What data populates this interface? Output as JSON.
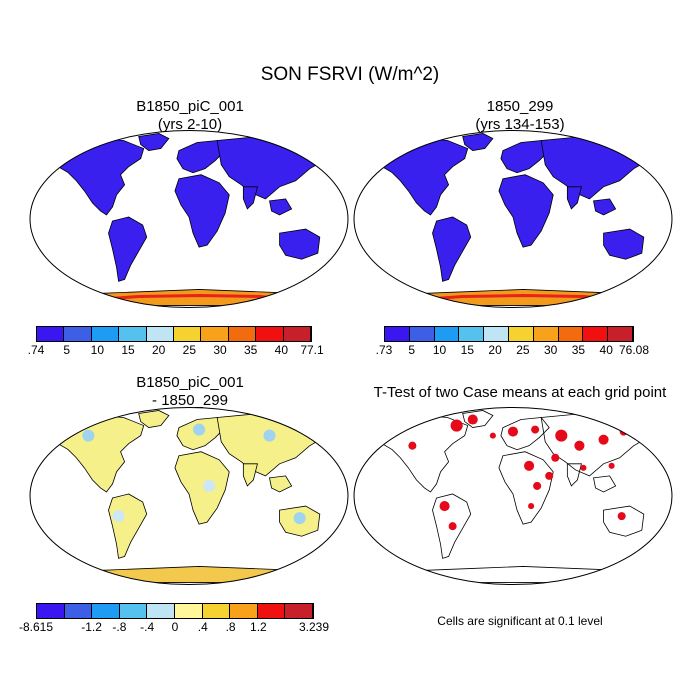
{
  "main_title": "SON FSRVI (W/m^2)",
  "panels": [
    {
      "title_line1": "B1850_piC_001",
      "title_line2": "(yrs 2-10)",
      "colorbar": {
        "labels": [
          ".74",
          "5",
          "10",
          "15",
          "20",
          "25",
          "30",
          "35",
          "40",
          "77.1"
        ],
        "colors": [
          "#3a17f0",
          "#3c5fe6",
          "#1e9bf2",
          "#55c1ee",
          "#bfe4f3",
          "#f5d230",
          "#f7a21a",
          "#f26b0f",
          "#f01010",
          "#c8202a"
        ]
      },
      "fill": "#3a20ee"
    },
    {
      "title_line1": "1850_299",
      "title_line2": "(yrs 134-153)",
      "colorbar": {
        "labels": [
          ".73",
          "5",
          "10",
          "15",
          "20",
          "25",
          "30",
          "35",
          "40",
          "76.08"
        ],
        "colors": [
          "#3a17f0",
          "#3c5fe6",
          "#1e9bf2",
          "#55c1ee",
          "#bfe4f3",
          "#f5d230",
          "#f7a21a",
          "#f26b0f",
          "#f01010",
          "#c8202a"
        ]
      },
      "fill": "#3a20ee"
    },
    {
      "title_line1": "B1850_piC_001",
      "title_line2": "- 1850_299",
      "colorbar": {
        "labels": [
          "-8.615",
          "",
          "-1.2",
          "-.8",
          "-.4",
          "0",
          ".4",
          ".8",
          "1.2",
          "",
          "3.239"
        ],
        "colors": [
          "#3a17f0",
          "#3c5fe6",
          "#1e9bf2",
          "#55c1ee",
          "#bfe4f3",
          "#fff79a",
          "#f5d230",
          "#f7a21a",
          "#f01010",
          "#c8202a"
        ]
      },
      "fill": "#f5f08a"
    },
    {
      "title_line1": "T-Test of two Case means at each grid point",
      "title_line2": "",
      "fill": "none"
    }
  ],
  "ttest_note": "Cells are significant at 0.1 level"
}
